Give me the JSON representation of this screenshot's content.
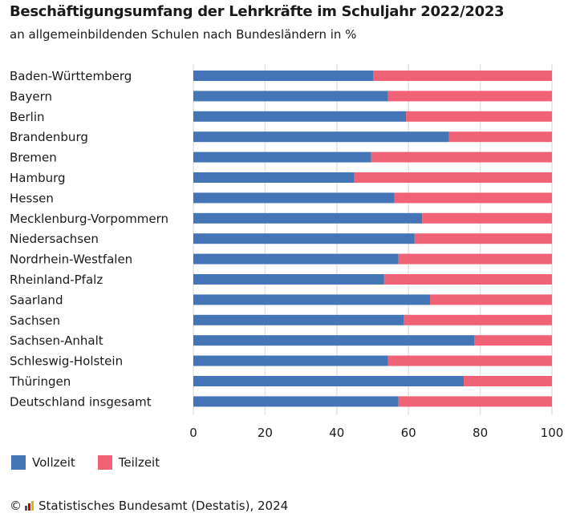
{
  "chart_data": {
    "type": "bar",
    "orientation": "horizontal",
    "stacked": true,
    "title": "Beschäftigungsumfang der Lehrkräfte im Schuljahr 2022/2023",
    "subtitle": "an allgemeinbildenden Schulen nach Bundesländern in %",
    "categories": [
      "Baden-Württemberg",
      "Bayern",
      "Berlin",
      "Brandenburg",
      "Bremen",
      "Hamburg",
      "Hessen",
      "Mecklenburg-Vorpommern",
      "Niedersachsen",
      "Nordrhein-Westfalen",
      "Rheinland-Pfalz",
      "Saarland",
      "Sachsen",
      "Sachsen-Anhalt",
      "Schleswig-Holstein",
      "Thüringen",
      "Deutschland insgesamt"
    ],
    "series": [
      {
        "name": "Vollzeit",
        "color": "#4375b7",
        "values": [
          50.2,
          54.3,
          59.3,
          71.3,
          49.6,
          44.9,
          56.1,
          63.8,
          61.7,
          57.2,
          53.2,
          66.0,
          58.7,
          78.3,
          54.3,
          75.4,
          57.2
        ]
      },
      {
        "name": "Teilzeit",
        "color": "#f06275",
        "values": [
          49.8,
          45.7,
          40.7,
          28.7,
          50.4,
          55.1,
          43.9,
          36.2,
          38.3,
          42.8,
          46.8,
          34.0,
          41.3,
          21.7,
          45.7,
          24.6,
          42.8
        ]
      }
    ],
    "xlim": [
      0,
      100
    ],
    "xticks": [
      "0",
      "20",
      "40",
      "60",
      "80",
      "100"
    ],
    "grid": true,
    "legend": "bottom-left"
  },
  "footer": {
    "copyright": "©",
    "source": "Statistisches Bundesamt (Destatis), 2024"
  }
}
